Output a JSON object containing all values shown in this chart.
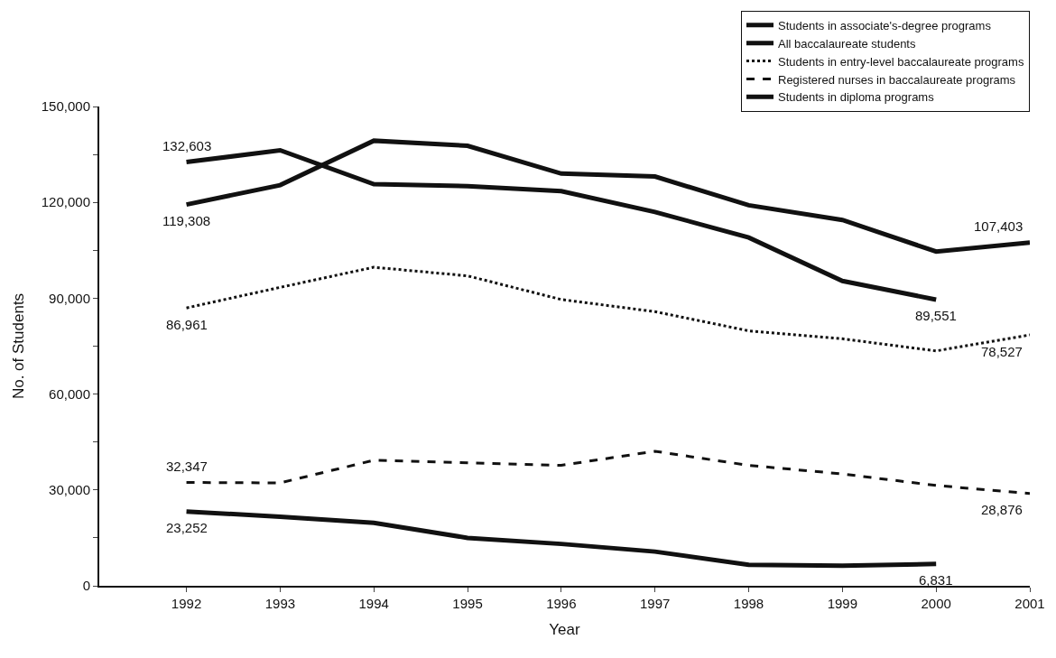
{
  "chart_data": {
    "type": "line",
    "xlabel": "Year",
    "ylabel": "No. of Students",
    "x": [
      1992,
      1993,
      1994,
      1995,
      1996,
      1997,
      1998,
      1999,
      2000,
      2001
    ],
    "xlim": [
      1991.07,
      2001
    ],
    "xticks": [
      1992,
      1993,
      1994,
      1995,
      1996,
      1997,
      1998,
      1999,
      2000,
      2001
    ],
    "ylim": [
      0,
      150000
    ],
    "yticks": [
      {
        "value": 0,
        "label": "0"
      },
      {
        "value": 15000,
        "label": null
      },
      {
        "value": 30000,
        "label": "30,000"
      },
      {
        "value": 45000,
        "label": null
      },
      {
        "value": 60000,
        "label": "60,000"
      },
      {
        "value": 75000,
        "label": null
      },
      {
        "value": 90000,
        "label": "90,000"
      },
      {
        "value": 105000,
        "label": null
      },
      {
        "value": 120000,
        "label": "120,000"
      },
      {
        "value": 135000,
        "label": null
      },
      {
        "value": 150000,
        "label": "150,000"
      }
    ],
    "legend": "top right",
    "marker": "none",
    "series": [
      {
        "name": "Students in associate's-degree programs",
        "color": "#111111",
        "line_style": "solid",
        "values": [
          132603,
          136300,
          125700,
          125100,
          123500,
          117000,
          109000,
          95400,
          89551,
          null
        ],
        "value_labels": [
          "132,603",
          null,
          null,
          null,
          null,
          null,
          null,
          null,
          "89,551",
          null
        ]
      },
      {
        "name": "All baccalaureate students",
        "color": "#111111",
        "line_style": "solid",
        "values": [
          119308,
          125400,
          139300,
          137700,
          129000,
          128100,
          119100,
          114500,
          104600,
          107403
        ],
        "value_labels": [
          "119,308",
          null,
          null,
          null,
          null,
          null,
          null,
          null,
          null,
          "107,403"
        ]
      },
      {
        "name": "Students in entry-level baccalaureate programs",
        "color": "#111111",
        "line_style": "dotted",
        "values": [
          86961,
          93400,
          99700,
          97000,
          89600,
          85800,
          79800,
          77300,
          73500,
          78527
        ],
        "value_labels": [
          "86,961",
          null,
          null,
          null,
          null,
          null,
          null,
          null,
          null,
          "78,527"
        ]
      },
      {
        "name": "Registered nurses in baccalaureate programs",
        "color": "#111111",
        "line_style": "dashed",
        "values": [
          32347,
          32200,
          39300,
          38500,
          37700,
          42100,
          37700,
          35000,
          31400,
          28876
        ],
        "value_labels": [
          "32,347",
          null,
          null,
          null,
          null,
          null,
          null,
          null,
          null,
          "28,876"
        ]
      },
      {
        "name": "Students in diploma programs",
        "color": "#111111",
        "line_style": "solid",
        "values": [
          23252,
          21600,
          19700,
          15000,
          13100,
          10700,
          6600,
          6300,
          6831,
          null
        ],
        "value_labels": [
          "23,252",
          null,
          null,
          null,
          null,
          null,
          null,
          null,
          "6,831",
          null
        ]
      }
    ]
  }
}
